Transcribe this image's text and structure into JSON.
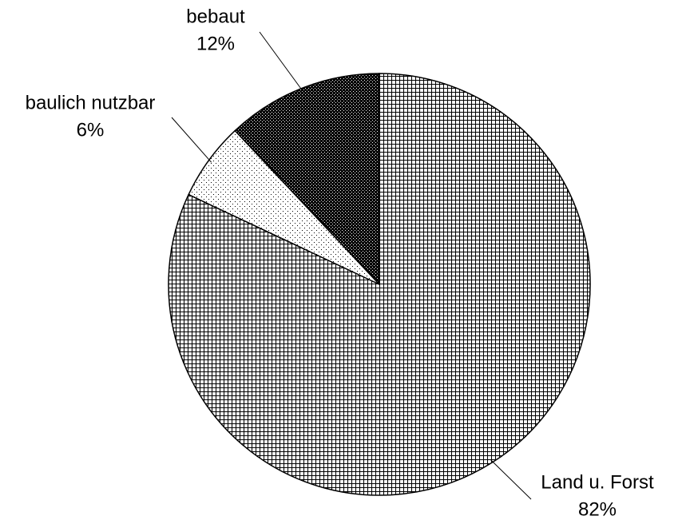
{
  "chart_data": {
    "type": "pie",
    "categories": [
      "Land u. Forst",
      "baulich nutzbar",
      "bebaut"
    ],
    "values": [
      82,
      6,
      12
    ],
    "value_labels": [
      "82%",
      "6%",
      "12%"
    ],
    "patterns": [
      "grid",
      "dots",
      "checker"
    ]
  }
}
